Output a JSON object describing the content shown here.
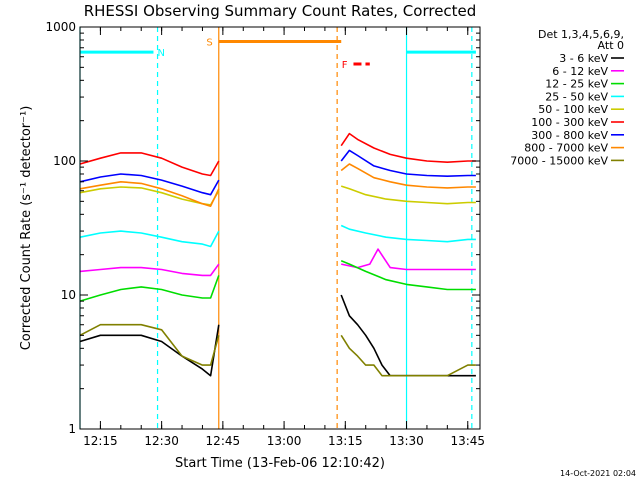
{
  "chart_data": {
    "type": "line",
    "title": "RHESSI Observing Summary Count Rates, Corrected",
    "xlabel": "Start Time (13-Feb-06 12:10:42)",
    "ylabel": "Corrected Count Rate (s⁻¹ detector⁻¹)",
    "x_units": "HH:MM on 13-Feb-2006",
    "xlim": [
      "12:10",
      "13:48"
    ],
    "ylim": [
      1,
      1000
    ],
    "y_scale": "log",
    "x_ticks": [
      "12:15",
      "12:30",
      "12:45",
      "13:00",
      "13:15",
      "13:30",
      "13:45"
    ],
    "y_ticks": [
      {
        "value": 1,
        "label": "1"
      },
      {
        "value": 10,
        "label": "10"
      },
      {
        "value": 100,
        "label": "100"
      },
      {
        "value": 1000,
        "label": "1000"
      }
    ],
    "legend": {
      "header": [
        "Det 1,3,4,5,6,9,",
        "Att 0"
      ],
      "placement": "right"
    },
    "series": [
      {
        "name": "3 - 6 keV",
        "color": "#000000",
        "x": [
          "12:10",
          "12:15",
          "12:20",
          "12:25",
          "12:30",
          "12:35",
          "12:40",
          "12:42",
          "12:44",
          "13:14",
          "13:16",
          "13:18",
          "13:20",
          "13:22",
          "13:24",
          "13:26",
          "13:30",
          "13:35",
          "13:40",
          "13:45",
          "13:47"
        ],
        "y": [
          4.5,
          5,
          5,
          5,
          4.5,
          3.5,
          2.8,
          2.5,
          6,
          10,
          7,
          6,
          5,
          4,
          3,
          2.5,
          2.5,
          2.5,
          2.5,
          2.5,
          2.5
        ]
      },
      {
        "name": "6 - 12 keV",
        "color": "#ff00ff",
        "x": [
          "12:10",
          "12:15",
          "12:20",
          "12:25",
          "12:30",
          "12:35",
          "12:40",
          "12:42",
          "12:44",
          "13:14",
          "13:18",
          "13:21",
          "13:23",
          "13:26",
          "13:30",
          "13:35",
          "13:40",
          "13:45",
          "13:47"
        ],
        "y": [
          15,
          15.5,
          16,
          16,
          15.5,
          14.5,
          14,
          14,
          17,
          17,
          16,
          17,
          22,
          16,
          15.5,
          15.5,
          15.5,
          15.5,
          15.5
        ]
      },
      {
        "name": "12 - 25 keV",
        "color": "#00dd00",
        "x": [
          "12:10",
          "12:15",
          "12:20",
          "12:25",
          "12:30",
          "12:35",
          "12:40",
          "12:42",
          "12:44",
          "13:14",
          "13:16",
          "13:20",
          "13:25",
          "13:30",
          "13:35",
          "13:40",
          "13:45",
          "13:47"
        ],
        "y": [
          9,
          10,
          11,
          11.5,
          11,
          10,
          9.5,
          9.5,
          14,
          18,
          17,
          15,
          13,
          12,
          11.5,
          11,
          11,
          11
        ]
      },
      {
        "name": "25 - 50 keV",
        "color": "#00ffff",
        "x": [
          "12:10",
          "12:15",
          "12:20",
          "12:25",
          "12:30",
          "12:35",
          "12:40",
          "12:42",
          "12:44",
          "13:14",
          "13:16",
          "13:20",
          "13:25",
          "13:30",
          "13:35",
          "13:40",
          "13:45",
          "13:47"
        ],
        "y": [
          27,
          29,
          30,
          29,
          27,
          25,
          24,
          23,
          30,
          33,
          31,
          29,
          27,
          26,
          25.5,
          25,
          26,
          26
        ]
      },
      {
        "name": "50 - 100 keV",
        "color": "#cccc00",
        "x": [
          "12:10",
          "12:15",
          "12:20",
          "12:25",
          "12:30",
          "12:35",
          "12:40",
          "12:42",
          "12:44",
          "13:14",
          "13:16",
          "13:20",
          "13:25",
          "13:30",
          "13:35",
          "13:40",
          "13:45",
          "13:47"
        ],
        "y": [
          58,
          62,
          64,
          63,
          58,
          52,
          48,
          47,
          60,
          65,
          62,
          56,
          52,
          50,
          49,
          48,
          49,
          49
        ]
      },
      {
        "name": "100 - 300 keV",
        "color": "#ff0000",
        "x": [
          "12:10",
          "12:15",
          "12:20",
          "12:25",
          "12:30",
          "12:35",
          "12:40",
          "12:42",
          "12:44",
          "13:14",
          "13:16",
          "13:18",
          "13:22",
          "13:26",
          "13:30",
          "13:35",
          "13:40",
          "13:45",
          "13:47"
        ],
        "y": [
          95,
          105,
          115,
          115,
          105,
          90,
          80,
          78,
          100,
          130,
          160,
          145,
          125,
          112,
          105,
          100,
          98,
          100,
          100
        ]
      },
      {
        "name": "300 - 800 keV",
        "color": "#0000ff",
        "x": [
          "12:10",
          "12:15",
          "12:20",
          "12:25",
          "12:30",
          "12:35",
          "12:40",
          "12:42",
          "12:44",
          "13:14",
          "13:16",
          "13:18",
          "13:22",
          "13:26",
          "13:30",
          "13:35",
          "13:40",
          "13:45",
          "13:47"
        ],
        "y": [
          70,
          76,
          80,
          78,
          72,
          65,
          58,
          56,
          72,
          100,
          120,
          110,
          92,
          85,
          80,
          78,
          77,
          78,
          78
        ]
      },
      {
        "name": "800 - 7000 keV",
        "color": "#ff8800",
        "x": [
          "12:10",
          "12:15",
          "12:20",
          "12:25",
          "12:30",
          "12:35",
          "12:40",
          "12:42",
          "12:44",
          "13:14",
          "13:16",
          "13:18",
          "13:22",
          "13:26",
          "13:30",
          "13:35",
          "13:40",
          "13:45",
          "13:47"
        ],
        "y": [
          62,
          66,
          70,
          68,
          62,
          55,
          48,
          46,
          62,
          85,
          95,
          88,
          75,
          70,
          66,
          64,
          63,
          64,
          64
        ]
      },
      {
        "name": "7000 - 15000 keV",
        "color": "#808000",
        "x": [
          "12:10",
          "12:15",
          "12:20",
          "12:25",
          "12:30",
          "12:35",
          "12:40",
          "12:42",
          "12:44",
          "13:14",
          "13:16",
          "13:18",
          "13:20",
          "13:22",
          "13:24",
          "13:26",
          "13:30",
          "13:35",
          "13:40",
          "13:45",
          "13:47"
        ],
        "y": [
          5,
          6,
          6,
          6,
          5.5,
          3.5,
          3,
          3,
          5,
          5,
          4,
          3.5,
          3,
          3,
          2.5,
          2.5,
          2.5,
          2.5,
          2.5,
          3,
          3
        ]
      }
    ],
    "annotations": [
      {
        "label": "N",
        "kind": "night",
        "color": "#00ffff",
        "x_start": "12:10",
        "x_end": "12:28",
        "y": 650
      },
      {
        "label": "",
        "kind": "night",
        "color": "#00ffff",
        "x_start": "13:30",
        "x_end": "13:47",
        "y": 650
      },
      {
        "label": "S",
        "kind": "saa",
        "color": "#ff8800",
        "x_start": "12:44",
        "x_end": "13:14",
        "y": 780
      },
      {
        "label": "F",
        "kind": "flare",
        "color": "#ff0000",
        "x_start": "13:17",
        "x_end": "13:21",
        "y": 530
      }
    ],
    "vertical_lines": [
      {
        "x": "12:10",
        "color": "#00ffff",
        "style": "solid"
      },
      {
        "x": "12:29",
        "color": "#00ffff",
        "style": "dashed"
      },
      {
        "x": "12:44",
        "color": "#ff8800",
        "style": "solid"
      },
      {
        "x": "13:13",
        "color": "#ff8800",
        "style": "dashed"
      },
      {
        "x": "13:30",
        "color": "#00ffff",
        "style": "solid"
      },
      {
        "x": "13:46",
        "color": "#00ffff",
        "style": "dashed"
      }
    ],
    "gaps": [
      [
        "12:44",
        "13:14"
      ]
    ]
  },
  "footer": {
    "timestamp": "14-Oct-2021 02:04"
  }
}
